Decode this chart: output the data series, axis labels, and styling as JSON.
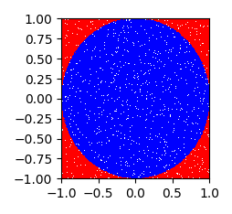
{
  "n_points": 100000,
  "seed": 42,
  "xlim": [
    -1.0,
    1.0
  ],
  "ylim": [
    -1.0,
    1.0
  ],
  "inside_color": "blue",
  "outside_color": "red",
  "marker_size": 0.5,
  "xticks": [
    -1.0,
    -0.5,
    0.0,
    0.5,
    1.0
  ],
  "yticks": [
    -1.0,
    -0.75,
    -0.5,
    -0.25,
    0.0,
    0.25,
    0.5,
    0.75,
    1.0
  ],
  "figwidth": 2.55,
  "figheight": 2.34,
  "dpi": 100
}
